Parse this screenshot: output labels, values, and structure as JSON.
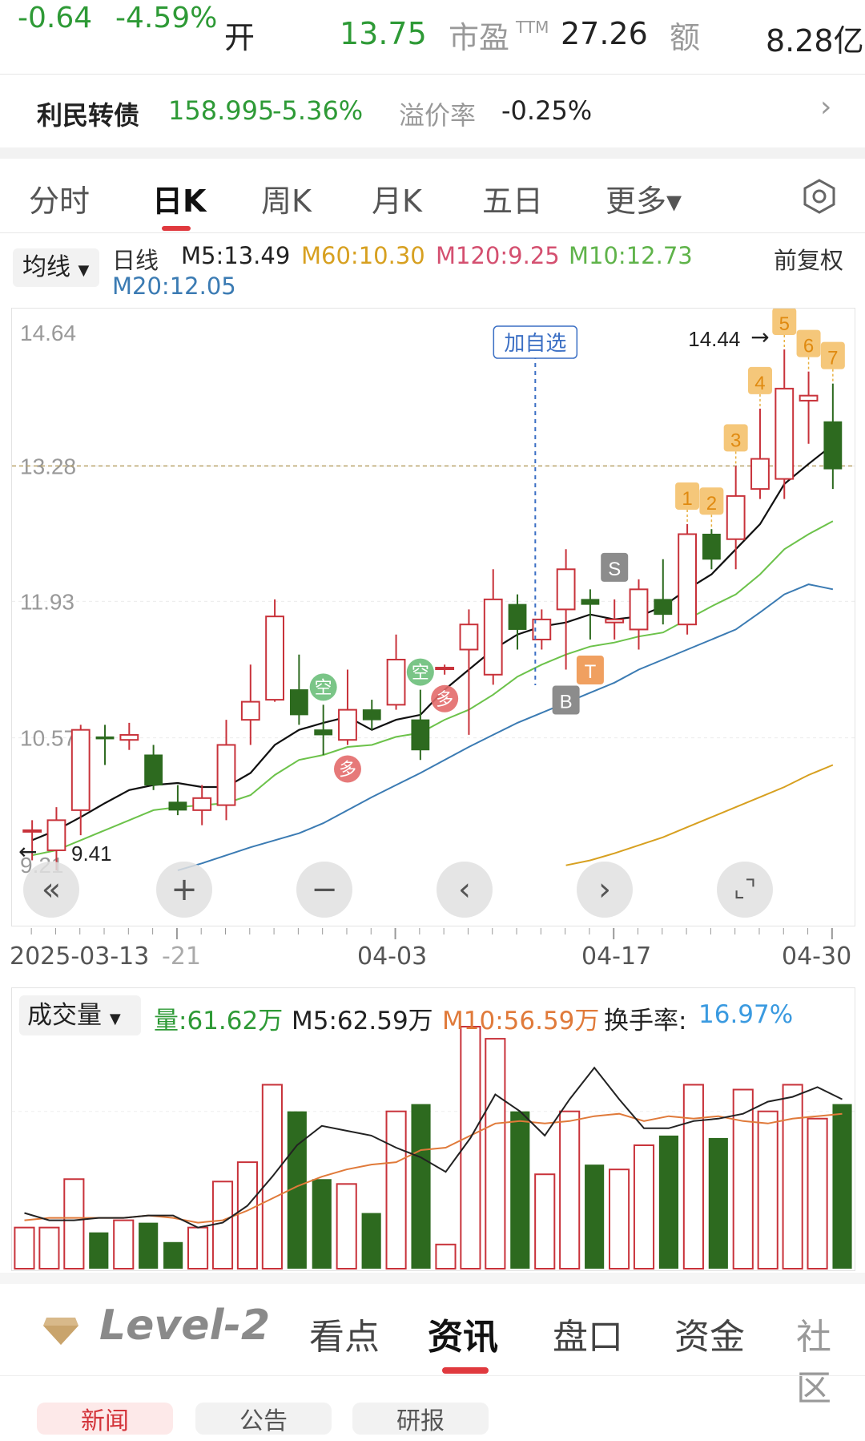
{
  "quote": {
    "change": "-0.64",
    "change_pct": "-4.59%",
    "open_label": "开",
    "open_value": "13.75",
    "pe_label": "市盈",
    "pe_sup": "TTM",
    "pe_value": "27.26",
    "amount_label": "额",
    "amount_value": "8.28亿"
  },
  "bond": {
    "name": "利民转债",
    "price": "158.995",
    "change_pct": "-5.36%",
    "premium_label": "溢价率",
    "premium_value": "-0.25%"
  },
  "tabs": [
    "分时",
    "日K",
    "周K",
    "月K",
    "五日",
    "更多▾"
  ],
  "ma": {
    "button": "均线",
    "period": "日线",
    "m5": "M5:13.49",
    "m60": "M60:10.30",
    "m120": "M120:9.25",
    "m10": "M10:12.73",
    "m20": "M20:12.05",
    "adjust": "前复权"
  },
  "chart_data": {
    "type": "candlestick",
    "y_ticks": [
      "14.64",
      "13.28",
      "11.93",
      "10.57",
      "9.21"
    ],
    "x_ticks": [
      "2025-03-13",
      "-21",
      "04-03",
      "04-17",
      "04-30"
    ],
    "high_label": "14.44",
    "low_label": "9.41",
    "ref_price": 13.28,
    "add_watch": "加自选",
    "candles": [
      {
        "o": 9.65,
        "c": 9.65,
        "h": 9.75,
        "l": 9.35,
        "up": true
      },
      {
        "o": 9.45,
        "c": 9.75,
        "h": 9.88,
        "l": 9.25,
        "up": true
      },
      {
        "o": 9.85,
        "c": 10.65,
        "h": 10.7,
        "l": 9.6,
        "up": true
      },
      {
        "o": 10.58,
        "c": 10.56,
        "h": 10.7,
        "l": 10.3,
        "up": false
      },
      {
        "o": 10.55,
        "c": 10.6,
        "h": 10.72,
        "l": 10.45,
        "up": true
      },
      {
        "o": 10.4,
        "c": 10.1,
        "h": 10.5,
        "l": 10.05,
        "up": false
      },
      {
        "o": 9.93,
        "c": 9.85,
        "h": 10.1,
        "l": 9.8,
        "up": false
      },
      {
        "o": 9.85,
        "c": 9.97,
        "h": 10.1,
        "l": 9.7,
        "up": true
      },
      {
        "o": 9.9,
        "c": 10.5,
        "h": 10.75,
        "l": 9.75,
        "up": true
      },
      {
        "o": 10.75,
        "c": 10.93,
        "h": 11.3,
        "l": 10.5,
        "up": true
      },
      {
        "o": 10.95,
        "c": 11.78,
        "h": 11.95,
        "l": 10.93,
        "up": true
      },
      {
        "o": 11.05,
        "c": 10.8,
        "h": 11.4,
        "l": 10.7,
        "up": false
      },
      {
        "o": 10.65,
        "c": 10.6,
        "h": 10.9,
        "l": 10.4,
        "up": false
      },
      {
        "o": 10.55,
        "c": 10.85,
        "h": 11.25,
        "l": 10.5,
        "up": true
      },
      {
        "o": 10.85,
        "c": 10.75,
        "h": 10.95,
        "l": 10.65,
        "up": false
      },
      {
        "o": 10.9,
        "c": 11.35,
        "h": 11.6,
        "l": 10.85,
        "up": true
      },
      {
        "o": 10.75,
        "c": 10.45,
        "h": 11.05,
        "l": 10.35,
        "up": false
      },
      {
        "o": 11.27,
        "c": 11.27,
        "h": 11.3,
        "l": 11.2,
        "up": true
      },
      {
        "o": 11.45,
        "c": 11.7,
        "h": 11.85,
        "l": 10.6,
        "up": true
      },
      {
        "o": 11.2,
        "c": 11.95,
        "h": 12.25,
        "l": 11.1,
        "up": true
      },
      {
        "o": 11.9,
        "c": 11.65,
        "h": 12.0,
        "l": 11.45,
        "up": false
      },
      {
        "o": 11.55,
        "c": 11.75,
        "h": 11.85,
        "l": 11.45,
        "up": true
      },
      {
        "o": 11.85,
        "c": 12.25,
        "h": 12.45,
        "l": 11.25,
        "up": true
      },
      {
        "o": 11.95,
        "c": 11.9,
        "h": 12.05,
        "l": 11.55,
        "up": false
      },
      {
        "o": 11.75,
        "c": 11.72,
        "h": 11.95,
        "l": 11.55,
        "up": true
      },
      {
        "o": 11.65,
        "c": 12.05,
        "h": 12.15,
        "l": 11.45,
        "up": true
      },
      {
        "o": 11.95,
        "c": 11.8,
        "h": 12.35,
        "l": 11.7,
        "up": false
      },
      {
        "o": 11.7,
        "c": 12.6,
        "h": 12.7,
        "l": 11.6,
        "up": true
      },
      {
        "o": 12.6,
        "c": 12.35,
        "h": 12.65,
        "l": 12.25,
        "up": false
      },
      {
        "o": 12.55,
        "c": 12.98,
        "h": 13.28,
        "l": 12.25,
        "up": true
      },
      {
        "o": 13.05,
        "c": 13.35,
        "h": 13.85,
        "l": 12.95,
        "up": true
      },
      {
        "o": 13.15,
        "c": 14.05,
        "h": 14.44,
        "l": 12.95,
        "up": true
      },
      {
        "o": 13.93,
        "c": 13.98,
        "h": 14.22,
        "l": 13.5,
        "up": true
      },
      {
        "o": 13.72,
        "c": 13.25,
        "h": 14.1,
        "l": 13.05,
        "up": false
      }
    ],
    "m5_line": [
      9.55,
      9.65,
      9.78,
      9.92,
      10.05,
      10.1,
      10.12,
      10.08,
      10.08,
      10.22,
      10.5,
      10.65,
      10.72,
      10.78,
      10.65,
      10.75,
      10.8,
      11.05,
      11.25,
      11.45,
      11.6,
      11.68,
      11.72,
      11.8,
      11.75,
      11.78,
      11.88,
      12.05,
      12.2,
      12.45,
      12.7,
      13.1,
      13.3,
      13.49
    ],
    "m10_line": [
      9.4,
      9.45,
      9.55,
      9.65,
      9.75,
      9.85,
      9.88,
      9.9,
      9.92,
      10.0,
      10.2,
      10.35,
      10.4,
      10.48,
      10.5,
      10.58,
      10.62,
      10.75,
      10.85,
      11.0,
      11.18,
      11.3,
      11.4,
      11.48,
      11.52,
      11.58,
      11.62,
      11.75,
      11.88,
      12.0,
      12.2,
      12.45,
      12.6,
      12.73
    ],
    "m20_line": [
      null,
      null,
      null,
      null,
      null,
      null,
      9.25,
      9.32,
      9.4,
      9.48,
      9.55,
      9.62,
      9.72,
      9.85,
      9.98,
      10.1,
      10.22,
      10.35,
      10.48,
      10.6,
      10.72,
      10.82,
      10.92,
      11.02,
      11.12,
      11.25,
      11.35,
      11.45,
      11.55,
      11.65,
      11.82,
      12.0,
      12.1,
      12.05
    ],
    "m60_line": [
      null,
      null,
      null,
      null,
      null,
      null,
      null,
      null,
      null,
      null,
      null,
      null,
      null,
      null,
      null,
      null,
      null,
      null,
      null,
      null,
      null,
      null,
      9.3,
      9.35,
      9.42,
      9.5,
      9.58,
      9.68,
      9.78,
      9.88,
      9.98,
      10.08,
      10.2,
      10.3
    ],
    "markers": [
      {
        "i": 12,
        "text": "空",
        "kind": "green"
      },
      {
        "i": 13,
        "text": "多",
        "kind": "red"
      },
      {
        "i": 16,
        "text": "空",
        "kind": "green"
      },
      {
        "i": 17,
        "text": "多",
        "kind": "red"
      },
      {
        "i": 24,
        "text": "S",
        "kind": "gray"
      },
      {
        "i": 22,
        "text": "B",
        "kind": "gray"
      },
      {
        "i": 23,
        "text": "T",
        "kind": "orange"
      },
      {
        "i": 27,
        "text": "1",
        "kind": "num"
      },
      {
        "i": 28,
        "text": "2",
        "kind": "num"
      },
      {
        "i": 29,
        "text": "3",
        "kind": "num"
      },
      {
        "i": 30,
        "text": "4",
        "kind": "num"
      },
      {
        "i": 31,
        "text": "5",
        "kind": "num"
      },
      {
        "i": 32,
        "text": "6",
        "kind": "num"
      },
      {
        "i": 33,
        "text": "7",
        "kind": "num"
      }
    ],
    "nav_buttons": [
      "«",
      "+",
      "−",
      "‹",
      "›",
      "⌞⌝"
    ]
  },
  "volume": {
    "button": "成交量",
    "vol": "量:61.62万",
    "m5": "M5:62.59万",
    "m10": "M10:56.59万",
    "turnover_label": "换手率:",
    "turnover_value": "16.97%",
    "bars": [
      {
        "v": 0.17,
        "up": true
      },
      {
        "v": 0.17,
        "up": true
      },
      {
        "v": 0.37,
        "up": true
      },
      {
        "v": 0.15,
        "up": false
      },
      {
        "v": 0.2,
        "up": true
      },
      {
        "v": 0.19,
        "up": false
      },
      {
        "v": 0.11,
        "up": false
      },
      {
        "v": 0.17,
        "up": true
      },
      {
        "v": 0.36,
        "up": true
      },
      {
        "v": 0.44,
        "up": true
      },
      {
        "v": 0.76,
        "up": true
      },
      {
        "v": 0.65,
        "up": false
      },
      {
        "v": 0.37,
        "up": false
      },
      {
        "v": 0.35,
        "up": true
      },
      {
        "v": 0.23,
        "up": false
      },
      {
        "v": 0.65,
        "up": true
      },
      {
        "v": 0.68,
        "up": false
      },
      {
        "v": 0.1,
        "up": true
      },
      {
        "v": 1.0,
        "up": true
      },
      {
        "v": 0.95,
        "up": true
      },
      {
        "v": 0.65,
        "up": false
      },
      {
        "v": 0.39,
        "up": true
      },
      {
        "v": 0.65,
        "up": true
      },
      {
        "v": 0.43,
        "up": false
      },
      {
        "v": 0.41,
        "up": true
      },
      {
        "v": 0.51,
        "up": true
      },
      {
        "v": 0.55,
        "up": false
      },
      {
        "v": 0.76,
        "up": true
      },
      {
        "v": 0.54,
        "up": false
      },
      {
        "v": 0.74,
        "up": true
      },
      {
        "v": 0.65,
        "up": true
      },
      {
        "v": 0.76,
        "up": true
      },
      {
        "v": 0.62,
        "up": true
      },
      {
        "v": 0.68,
        "up": false
      }
    ],
    "m5_line": [
      0.23,
      0.2,
      0.2,
      0.21,
      0.21,
      0.22,
      0.22,
      0.17,
      0.19,
      0.26,
      0.38,
      0.51,
      0.59,
      0.57,
      0.55,
      0.5,
      0.46,
      0.4,
      0.54,
      0.72,
      0.65,
      0.55,
      0.7,
      0.83,
      0.7,
      0.58,
      0.58,
      0.61,
      0.62,
      0.64,
      0.69,
      0.71,
      0.75,
      0.7
    ],
    "m10_line": [
      0.2,
      0.21,
      0.21,
      0.21,
      0.21,
      0.22,
      0.21,
      0.19,
      0.2,
      0.24,
      0.29,
      0.34,
      0.38,
      0.41,
      0.43,
      0.44,
      0.49,
      0.5,
      0.55,
      0.6,
      0.61,
      0.6,
      0.61,
      0.63,
      0.64,
      0.61,
      0.63,
      0.62,
      0.63,
      0.61,
      0.6,
      0.62,
      0.63,
      0.64
    ]
  },
  "bottom_tabs": {
    "level2": "Level-2",
    "items": [
      "看点",
      "资讯",
      "盘口",
      "资金",
      "社区"
    ],
    "active": 1,
    "sub_tabs": [
      "新闻",
      "公告",
      "研报"
    ]
  }
}
